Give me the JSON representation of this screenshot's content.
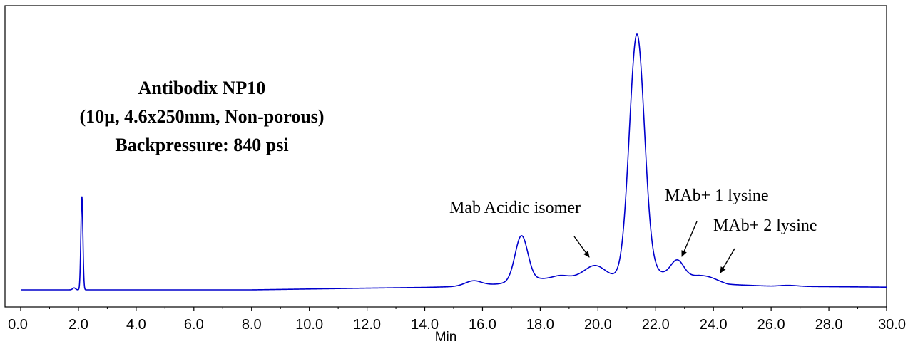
{
  "chart_data": {
    "type": "line",
    "xlabel": "Min",
    "ylabel": "",
    "xlim": [
      0,
      30
    ],
    "ylim": [
      0,
      100
    ],
    "x_ticks": [
      "0.0",
      "2.0",
      "4.0",
      "6.0",
      "8.0",
      "10.0",
      "12.0",
      "14.0",
      "16.0",
      "18.0",
      "20.0",
      "22.0",
      "24.0",
      "26.0",
      "28.0",
      "30.0"
    ],
    "grid": false,
    "line_color": "#0000cc",
    "info_lines": [
      "Antibodix NP10",
      "(10µ, 4.6x250mm, Non-porous)",
      "Backpressure: 840 psi"
    ],
    "annotations": [
      {
        "label": "Mab Acidic isomer",
        "x": 19.9,
        "y": 10
      },
      {
        "label": "MAb+ 1 lysine",
        "x": 22.75,
        "y": 12
      },
      {
        "label": "MAb+ 2 lysine",
        "x": 24.0,
        "y": 1
      }
    ],
    "baseline": [
      [
        0,
        0
      ],
      [
        8,
        0
      ],
      [
        12,
        0.7
      ],
      [
        14,
        1
      ],
      [
        16,
        1.6
      ],
      [
        18,
        4.5
      ],
      [
        19.3,
        5.2
      ],
      [
        20.6,
        5
      ],
      [
        22,
        7
      ],
      [
        23.5,
        5
      ],
      [
        24.5,
        2.2
      ],
      [
        26,
        1.5
      ],
      [
        28,
        1.3
      ],
      [
        30,
        1.1
      ]
    ],
    "peaks": [
      {
        "center": 2.12,
        "height": 38,
        "width": 0.035
      },
      {
        "center": 1.85,
        "height": 0.8,
        "width": 0.05
      },
      {
        "center": 15.7,
        "height": 2.2,
        "width": 0.3
      },
      {
        "center": 17.35,
        "height": 18.5,
        "width": 0.22
      },
      {
        "center": 18.7,
        "height": 1.0,
        "width": 0.25
      },
      {
        "center": 19.9,
        "height": 4.8,
        "width": 0.35
      },
      {
        "center": 21.35,
        "height": 98,
        "width": 0.26
      },
      {
        "center": 22.75,
        "height": 6.2,
        "width": 0.22
      },
      {
        "center": 23.8,
        "height": 1.3,
        "width": 0.35
      },
      {
        "center": 26.6,
        "height": 0.4,
        "width": 0.3
      }
    ]
  }
}
